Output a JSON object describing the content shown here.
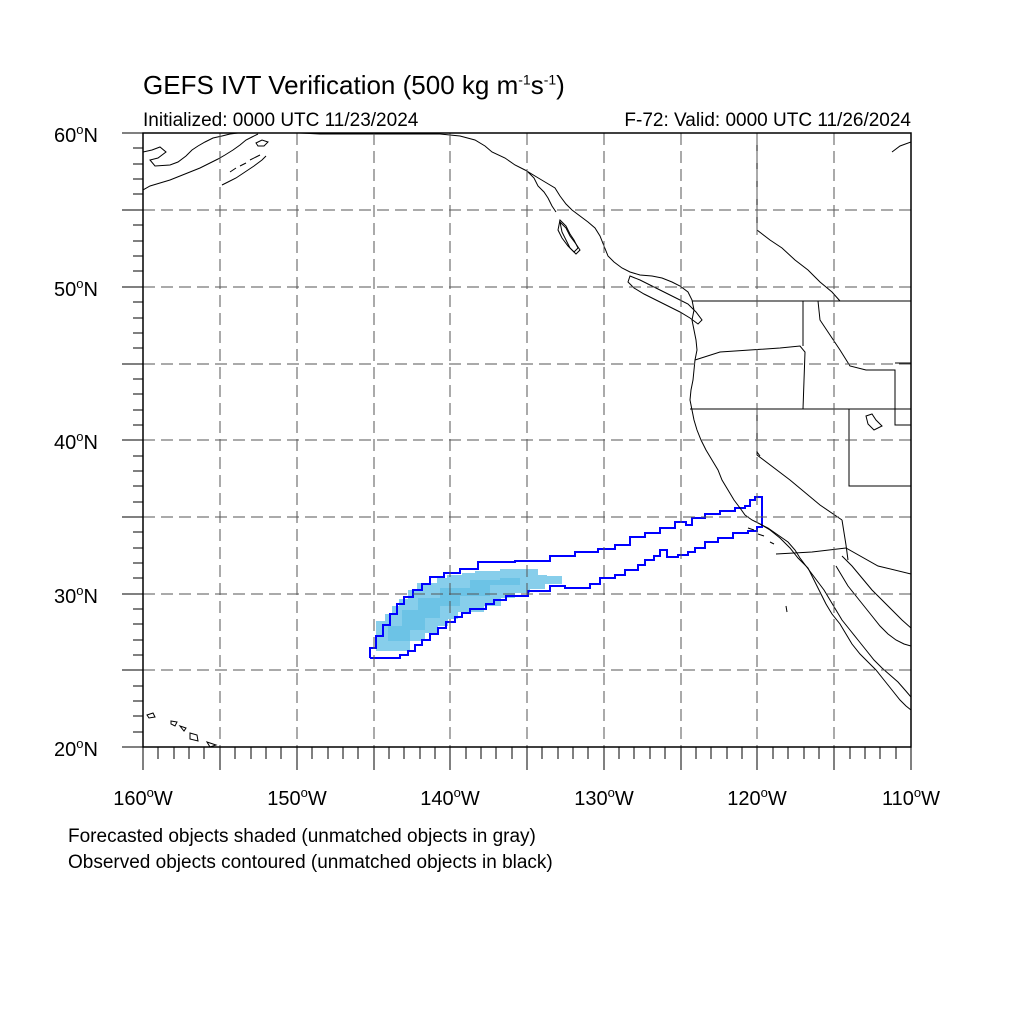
{
  "title": {
    "main": "GEFS IVT Verification (500 kg m",
    "exp1": "-1",
    "mid": "s",
    "exp2": "-1",
    "end": ")"
  },
  "init_text": "Initialized: 0000 UTC 11/23/2024",
  "valid_text": "F-72: Valid: 0000 UTC 11/26/2024",
  "footnotes": {
    "line1": "Forecasted objects shaded (unmatched objects in gray)",
    "line2": "Observed objects contoured (unmatched objects in black)"
  },
  "axes": {
    "lat_labels": [
      "60",
      "50",
      "40",
      "30",
      "20"
    ],
    "lon_labels": [
      "160",
      "150",
      "140",
      "130",
      "120",
      "110"
    ],
    "lat_suffix": "N",
    "lon_suffix": "W",
    "degree_symbol": "o",
    "lat_range": [
      20,
      60
    ],
    "lon_range": [
      -160,
      -110
    ],
    "gridlines": "dashed"
  },
  "colors": {
    "forecast_fill": "#87ceeb",
    "observed_contour": "#0000ff",
    "coastline": "#000000",
    "grid": "#555555"
  },
  "objects": {
    "forecast": [
      {
        "label": "Forecasted objects shaded",
        "matched": true,
        "approx_lon_range": [
          -145,
          -133
        ],
        "approx_lat_range": [
          26,
          31.5
        ]
      }
    ],
    "observed": [
      {
        "label": "Observed objects contoured",
        "matched": true,
        "approx_lon_range": [
          -145.2,
          -119.8
        ],
        "approx_lat_range": [
          25.8,
          36.3
        ]
      }
    ]
  }
}
